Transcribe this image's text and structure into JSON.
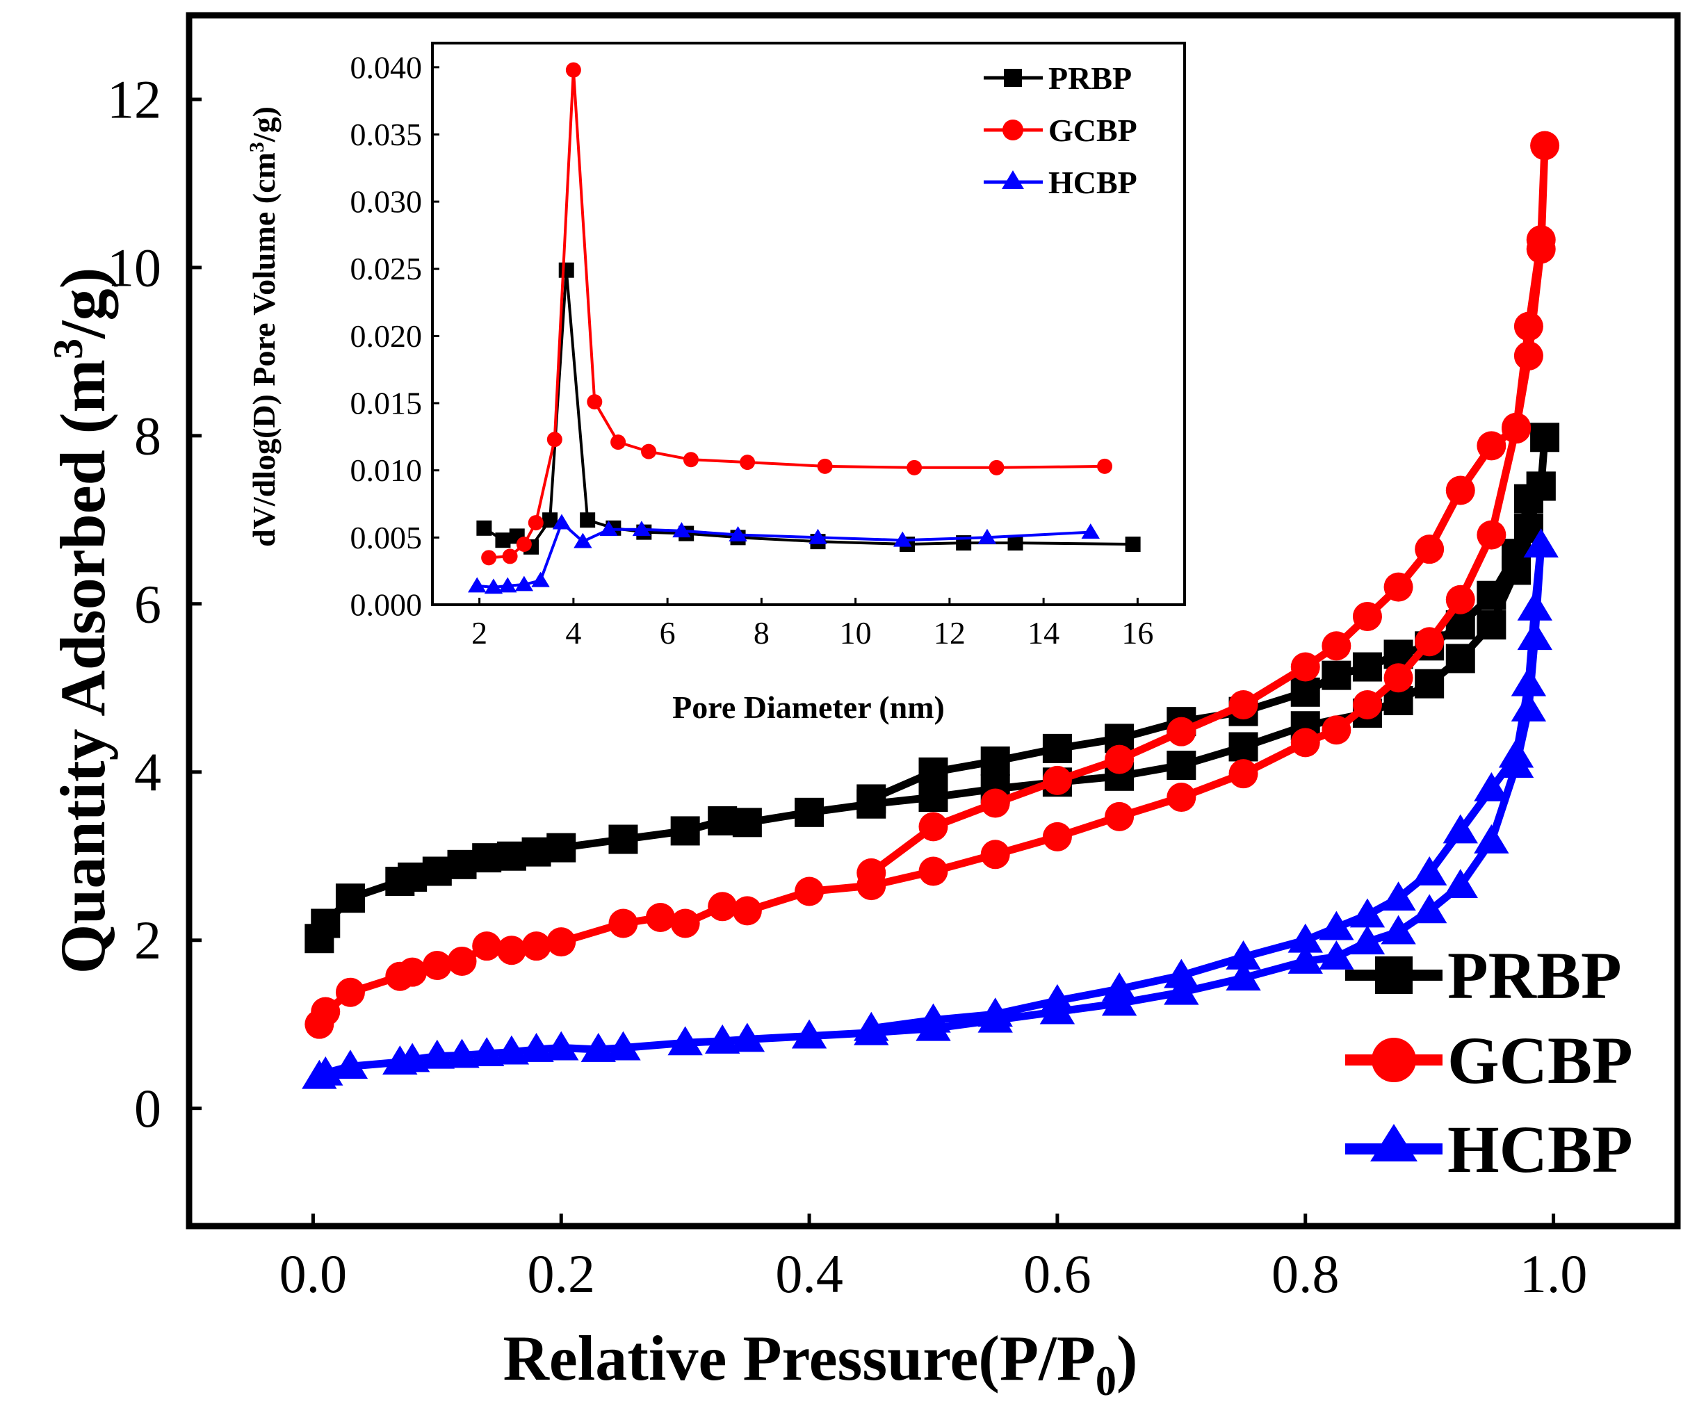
{
  "colors": {
    "PRBP": "#000000",
    "GCBP": "#ff0000",
    "HCBP": "#0000ff"
  },
  "chart_data": [
    {
      "id": "main",
      "type": "line",
      "title": "",
      "xlabel_text": "Relative Pressure(P/P",
      "xlabel_sub": "0",
      "xlabel_close": ")",
      "ylabel_text": "Quantity Adsorbed (m",
      "ylabel_sup": "3",
      "ylabel_tail": "/g)",
      "xlim": [
        -0.1,
        1.1
      ],
      "ylim": [
        -1.4,
        13.0
      ],
      "xticks": [
        0.0,
        0.2,
        0.4,
        0.6,
        0.8,
        1.0
      ],
      "xtick_labels": [
        "0.0",
        "0.2",
        "0.4",
        "0.6",
        "0.8",
        "1.0"
      ],
      "yticks": [
        0,
        2,
        4,
        6,
        8,
        10,
        12
      ],
      "ytick_labels": [
        "0",
        "2",
        "4",
        "6",
        "8",
        "10",
        "12"
      ],
      "legend_position": "bottom-right",
      "series": [
        {
          "name": "PRBP",
          "marker": "square",
          "x": [
            0.005,
            0.01,
            0.03,
            0.07,
            0.08,
            0.1,
            0.12,
            0.14,
            0.16,
            0.18,
            0.2,
            0.25,
            0.3,
            0.33,
            0.35,
            0.4,
            0.45,
            0.5,
            0.55,
            0.6,
            0.65,
            0.7,
            0.75,
            0.8,
            0.85,
            0.875,
            0.9,
            0.925,
            0.95,
            0.97,
            0.98,
            0.99,
            0.993,
            0.99,
            0.98,
            0.97,
            0.95,
            0.925,
            0.9,
            0.875,
            0.85,
            0.825,
            0.8,
            0.75,
            0.7,
            0.65,
            0.6,
            0.55,
            0.5,
            0.45
          ],
          "y": [
            2.02,
            2.2,
            2.5,
            2.7,
            2.75,
            2.82,
            2.9,
            2.98,
            3.0,
            3.05,
            3.1,
            3.2,
            3.3,
            3.42,
            3.4,
            3.52,
            3.62,
            3.7,
            3.8,
            3.88,
            3.95,
            4.08,
            4.3,
            4.55,
            4.7,
            4.85,
            5.05,
            5.35,
            5.75,
            6.4,
            6.9,
            7.4,
            7.98,
            7.4,
            7.25,
            6.6,
            6.1,
            5.75,
            5.5,
            5.4,
            5.25,
            5.15,
            4.95,
            4.72,
            4.6,
            4.4,
            4.28,
            4.13,
            4.0,
            3.68
          ]
        },
        {
          "name": "GCBP",
          "marker": "circle",
          "x": [
            0.005,
            0.01,
            0.03,
            0.07,
            0.08,
            0.1,
            0.12,
            0.14,
            0.16,
            0.18,
            0.2,
            0.25,
            0.28,
            0.3,
            0.33,
            0.35,
            0.4,
            0.45,
            0.5,
            0.55,
            0.6,
            0.65,
            0.7,
            0.75,
            0.8,
            0.825,
            0.85,
            0.875,
            0.9,
            0.925,
            0.95,
            0.97,
            0.98,
            0.99,
            0.993,
            0.99,
            0.98,
            0.97,
            0.95,
            0.925,
            0.9,
            0.875,
            0.85,
            0.825,
            0.8,
            0.75,
            0.7,
            0.65,
            0.6,
            0.55,
            0.5,
            0.45
          ],
          "y": [
            1.0,
            1.15,
            1.38,
            1.57,
            1.62,
            1.7,
            1.75,
            1.93,
            1.88,
            1.93,
            1.98,
            2.2,
            2.27,
            2.2,
            2.4,
            2.35,
            2.58,
            2.65,
            2.82,
            3.02,
            3.23,
            3.47,
            3.7,
            3.98,
            4.35,
            4.5,
            4.8,
            5.12,
            5.55,
            6.05,
            6.82,
            8.1,
            8.95,
            10.22,
            11.45,
            10.33,
            9.3,
            8.08,
            7.88,
            7.35,
            6.65,
            6.2,
            5.85,
            5.5,
            5.25,
            4.8,
            4.48,
            4.15,
            3.9,
            3.63,
            3.35,
            2.8
          ]
        },
        {
          "name": "HCBP",
          "marker": "triangle",
          "x": [
            0.005,
            0.01,
            0.03,
            0.07,
            0.08,
            0.1,
            0.12,
            0.14,
            0.16,
            0.18,
            0.2,
            0.23,
            0.25,
            0.3,
            0.33,
            0.35,
            0.4,
            0.45,
            0.5,
            0.55,
            0.6,
            0.65,
            0.7,
            0.75,
            0.8,
            0.825,
            0.85,
            0.875,
            0.9,
            0.925,
            0.95,
            0.97,
            0.98,
            0.985,
            0.99,
            0.985,
            0.98,
            0.97,
            0.95,
            0.925,
            0.9,
            0.875,
            0.85,
            0.825,
            0.8,
            0.75,
            0.7,
            0.65,
            0.6,
            0.55,
            0.5,
            0.45
          ],
          "y": [
            0.38,
            0.42,
            0.5,
            0.55,
            0.58,
            0.62,
            0.63,
            0.65,
            0.67,
            0.7,
            0.72,
            0.7,
            0.72,
            0.78,
            0.8,
            0.82,
            0.86,
            0.9,
            0.95,
            1.05,
            1.15,
            1.25,
            1.38,
            1.55,
            1.75,
            1.8,
            1.98,
            2.1,
            2.35,
            2.65,
            3.18,
            4.08,
            4.75,
            5.6,
            6.7,
            5.95,
            5.05,
            4.2,
            3.8,
            3.3,
            2.8,
            2.5,
            2.3,
            2.15,
            2.0,
            1.8,
            1.58,
            1.42,
            1.28,
            1.12,
            1.05,
            0.95
          ]
        }
      ]
    },
    {
      "id": "inset",
      "type": "line",
      "title": "",
      "xlabel": "Pore Diameter (nm)",
      "ylabel_text": "dV/dlog(D) Pore Volume (cm",
      "ylabel_sup": "3",
      "ylabel_tail": "/g)",
      "xlim": [
        1,
        17
      ],
      "ylim": [
        0.0,
        0.0418
      ],
      "xticks": [
        2,
        4,
        6,
        8,
        10,
        12,
        14,
        16
      ],
      "xtick_labels": [
        "2",
        "4",
        "6",
        "8",
        "10",
        "12",
        "14",
        "16"
      ],
      "yticks": [
        0.0,
        0.005,
        0.01,
        0.015,
        0.02,
        0.025,
        0.03,
        0.035,
        0.04
      ],
      "ytick_labels": [
        "0.000",
        "0.005",
        "0.010",
        "0.015",
        "0.020",
        "0.025",
        "0.030",
        "0.035",
        "0.040"
      ],
      "legend_position": "top-right",
      "series": [
        {
          "name": "PRBP",
          "marker": "square",
          "x": [
            2.1,
            2.5,
            2.8,
            3.1,
            3.5,
            3.85,
            4.3,
            4.85,
            5.5,
            6.4,
            7.5,
            9.2,
            11.1,
            12.3,
            13.4,
            15.9
          ],
          "y": [
            0.0057,
            0.0048,
            0.0051,
            0.0043,
            0.0063,
            0.0249,
            0.0063,
            0.0057,
            0.0054,
            0.0053,
            0.005,
            0.0047,
            0.0045,
            0.0046,
            0.0046,
            0.0045
          ]
        },
        {
          "name": "GCBP",
          "marker": "circle",
          "x": [
            2.2,
            2.65,
            2.95,
            3.2,
            3.6,
            4.0,
            4.45,
            4.95,
            5.6,
            6.5,
            7.7,
            9.35,
            11.25,
            13.0,
            15.3
          ],
          "y": [
            0.0035,
            0.0036,
            0.0045,
            0.0061,
            0.0123,
            0.0398,
            0.0151,
            0.0121,
            0.0114,
            0.0108,
            0.0106,
            0.0103,
            0.0102,
            0.0102,
            0.0103
          ]
        },
        {
          "name": "HCBP",
          "marker": "triangle",
          "x": [
            1.95,
            2.3,
            2.6,
            2.95,
            3.3,
            3.75,
            4.2,
            4.75,
            5.45,
            6.3,
            7.5,
            9.2,
            11.0,
            12.8,
            15.0
          ],
          "y": [
            0.0014,
            0.0013,
            0.0014,
            0.0015,
            0.0018,
            0.0061,
            0.0047,
            0.0056,
            0.0056,
            0.0055,
            0.0052,
            0.005,
            0.0048,
            0.005,
            0.0054
          ]
        }
      ]
    }
  ]
}
